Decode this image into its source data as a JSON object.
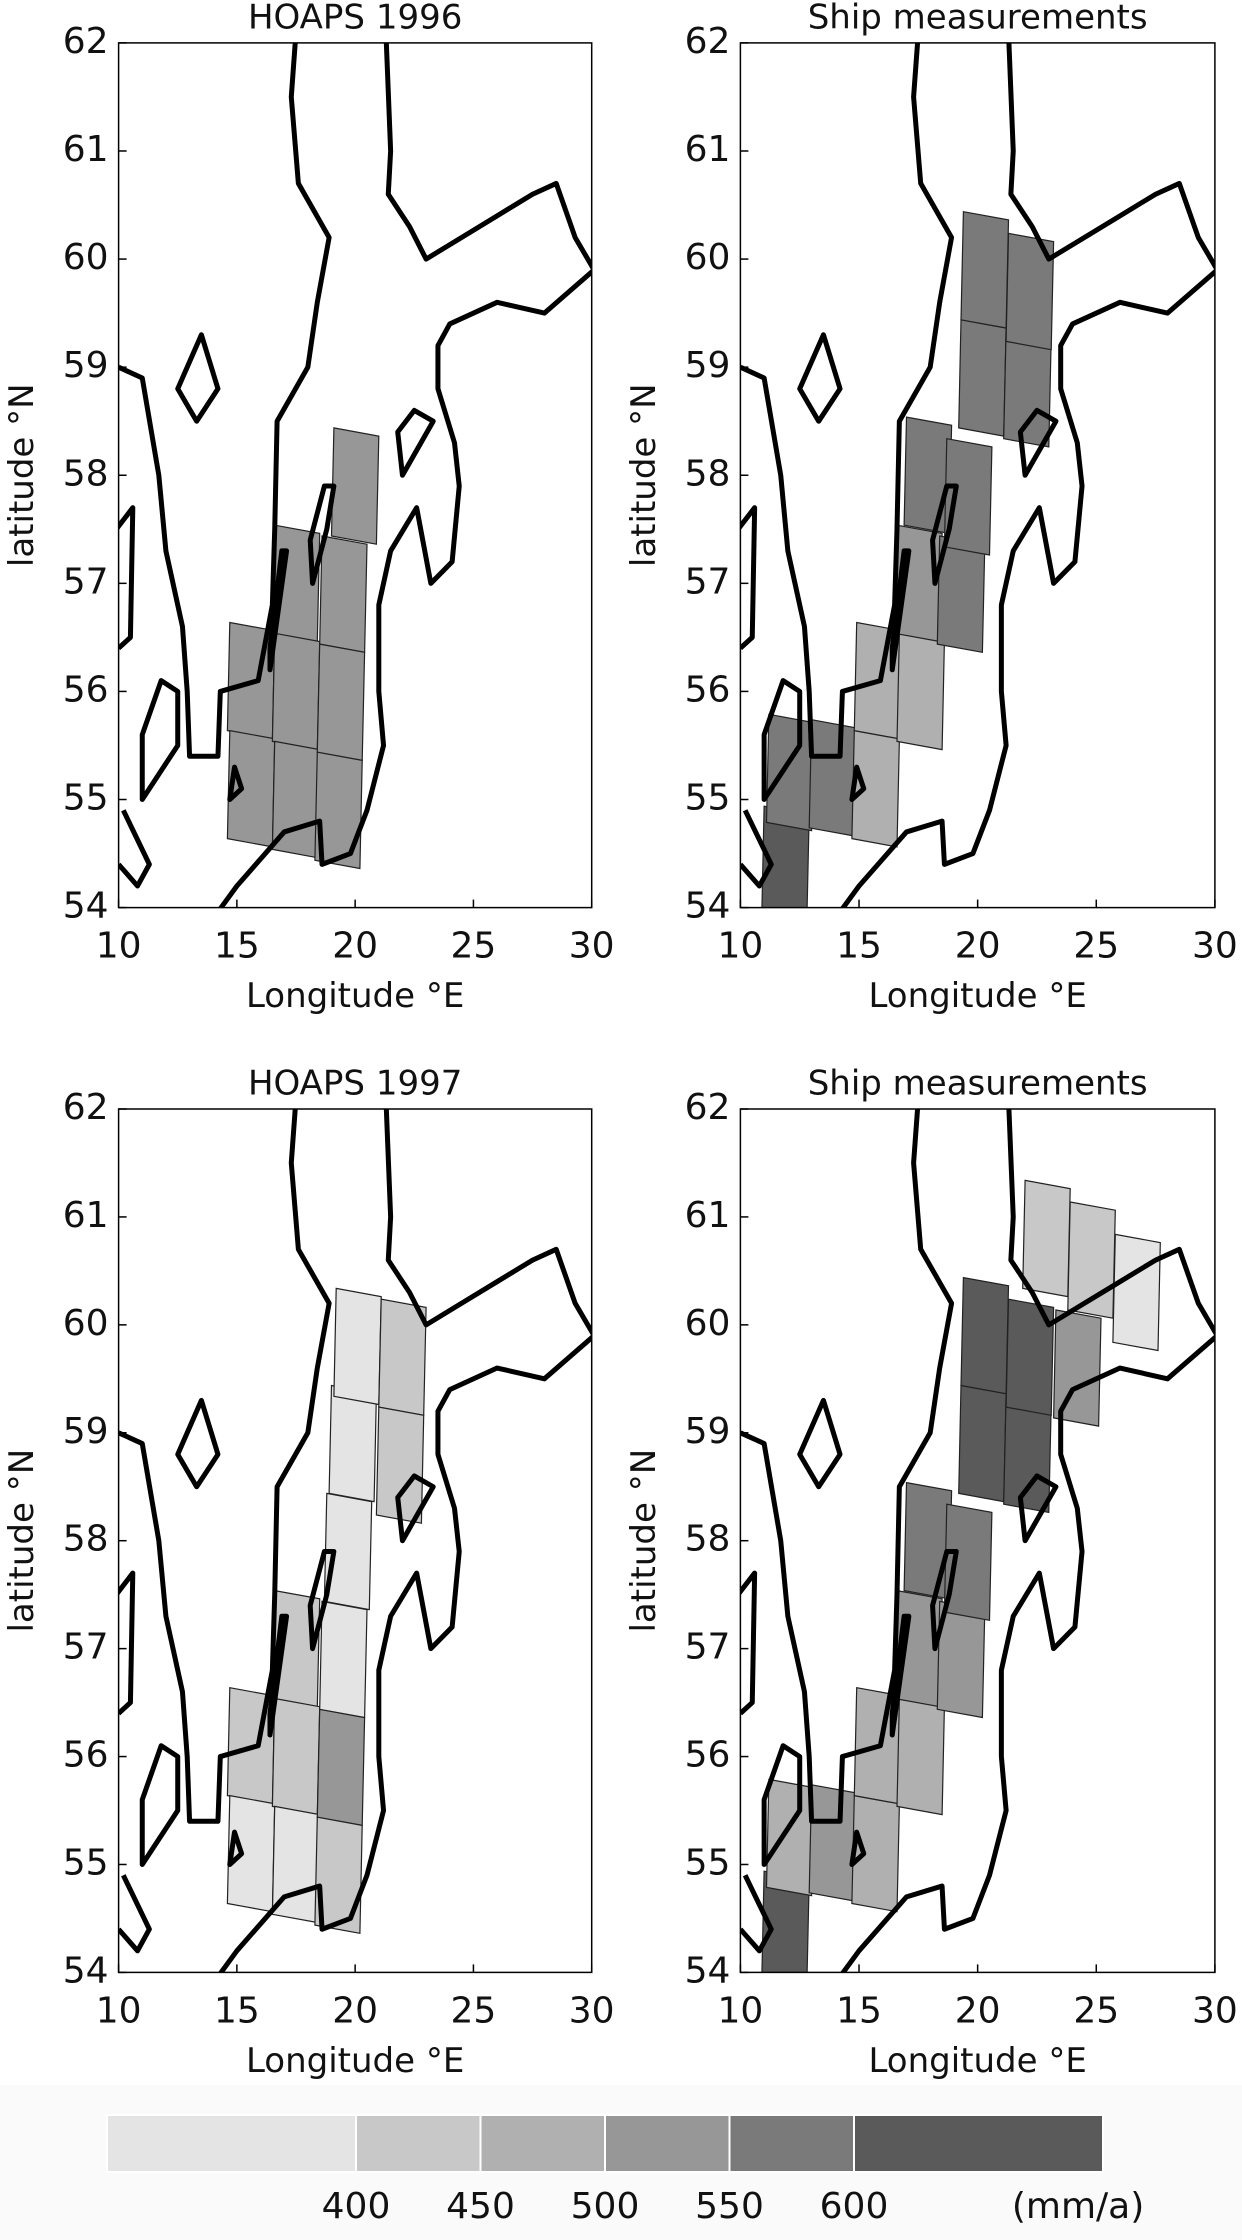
{
  "chart_data": [
    {
      "type": "map",
      "title": "HOAPS 1996",
      "xlabel": "Longitude °E",
      "ylabel": "latitude °N",
      "xlim": [
        10,
        30
      ],
      "ylim": [
        54,
        62
      ],
      "xticks": [
        10,
        15,
        20,
        25,
        30
      ],
      "yticks": [
        54,
        55,
        56,
        57,
        58,
        59,
        60,
        61,
        62
      ],
      "cells": [
        {
          "lon": 15.6,
          "lat": 56.1,
          "value": 525
        },
        {
          "lon": 15.6,
          "lat": 55.1,
          "value": 525
        },
        {
          "lon": 17.5,
          "lat": 57.0,
          "value": 525
        },
        {
          "lon": 17.5,
          "lat": 56.0,
          "value": 525
        },
        {
          "lon": 17.5,
          "lat": 55.0,
          "value": 525
        },
        {
          "lon": 20.0,
          "lat": 57.9,
          "value": 525
        },
        {
          "lon": 19.5,
          "lat": 56.9,
          "value": 525
        },
        {
          "lon": 19.4,
          "lat": 55.9,
          "value": 525
        },
        {
          "lon": 19.3,
          "lat": 54.9,
          "value": 525
        }
      ]
    },
    {
      "type": "map",
      "title": "Ship measurements",
      "xlabel": "Longitude °E",
      "ylabel": "latitude °N",
      "xlim": [
        10,
        30
      ],
      "ylim": [
        54,
        62
      ],
      "xticks": [
        10,
        15,
        20,
        25,
        30
      ],
      "yticks": [
        54,
        55,
        56,
        57,
        58,
        59,
        60,
        61,
        62
      ],
      "cells": [
        {
          "lon": 11.9,
          "lat": 54.4,
          "value": 625
        },
        {
          "lon": 12.1,
          "lat": 55.25,
          "value": 575
        },
        {
          "lon": 13.9,
          "lat": 55.2,
          "value": 575
        },
        {
          "lon": 15.7,
          "lat": 55.1,
          "value": 475
        },
        {
          "lon": 15.8,
          "lat": 56.1,
          "value": 475
        },
        {
          "lon": 17.6,
          "lat": 56.0,
          "value": 475
        },
        {
          "lon": 17.5,
          "lat": 57.0,
          "value": 525
        },
        {
          "lon": 17.9,
          "lat": 58.0,
          "value": 575
        },
        {
          "lon": 19.3,
          "lat": 56.9,
          "value": 575
        },
        {
          "lon": 19.6,
          "lat": 57.8,
          "value": 575
        },
        {
          "lon": 20.2,
          "lat": 58.9,
          "value": 575
        },
        {
          "lon": 20.3,
          "lat": 59.9,
          "value": 575
        },
        {
          "lon": 22.1,
          "lat": 58.8,
          "value": 575
        },
        {
          "lon": 22.2,
          "lat": 59.7,
          "value": 575
        }
      ]
    },
    {
      "type": "map",
      "title": "HOAPS 1997",
      "xlabel": "Longitude °E",
      "ylabel": "latitude °N",
      "xlim": [
        10,
        30
      ],
      "ylim": [
        54,
        62
      ],
      "xticks": [
        10,
        15,
        20,
        25,
        30
      ],
      "yticks": [
        54,
        55,
        56,
        57,
        58,
        59,
        60,
        61,
        62
      ],
      "cells": [
        {
          "lon": 15.6,
          "lat": 56.1,
          "value": 425
        },
        {
          "lon": 15.6,
          "lat": 55.1,
          "value": 375
        },
        {
          "lon": 17.5,
          "lat": 57.0,
          "value": 425
        },
        {
          "lon": 17.5,
          "lat": 56.0,
          "value": 425
        },
        {
          "lon": 17.5,
          "lat": 55.0,
          "value": 375
        },
        {
          "lon": 19.4,
          "lat": 55.9,
          "value": 525
        },
        {
          "lon": 19.3,
          "lat": 54.9,
          "value": 425
        },
        {
          "lon": 19.5,
          "lat": 56.9,
          "value": 375
        },
        {
          "lon": 19.7,
          "lat": 57.9,
          "value": 375
        },
        {
          "lon": 19.9,
          "lat": 58.9,
          "value": 375
        },
        {
          "lon": 20.1,
          "lat": 59.8,
          "value": 375
        },
        {
          "lon": 22.0,
          "lat": 59.7,
          "value": 425
        },
        {
          "lon": 21.9,
          "lat": 58.7,
          "value": 425
        }
      ]
    },
    {
      "type": "map",
      "title": "Ship measurements",
      "xlabel": "Longitude °E",
      "ylabel": "latitude °N",
      "xlim": [
        10,
        30
      ],
      "ylim": [
        54,
        62
      ],
      "xticks": [
        10,
        15,
        20,
        25,
        30
      ],
      "yticks": [
        54,
        55,
        56,
        57,
        58,
        59,
        60,
        61,
        62
      ],
      "cells": [
        {
          "lon": 11.9,
          "lat": 54.4,
          "value": 625
        },
        {
          "lon": 12.1,
          "lat": 55.25,
          "value": 475
        },
        {
          "lon": 13.9,
          "lat": 55.2,
          "value": 525
        },
        {
          "lon": 15.7,
          "lat": 55.1,
          "value": 475
        },
        {
          "lon": 15.8,
          "lat": 56.1,
          "value": 475
        },
        {
          "lon": 17.6,
          "lat": 56.0,
          "value": 475
        },
        {
          "lon": 17.5,
          "lat": 57.0,
          "value": 525
        },
        {
          "lon": 19.3,
          "lat": 56.9,
          "value": 525
        },
        {
          "lon": 17.9,
          "lat": 58.0,
          "value": 575
        },
        {
          "lon": 19.6,
          "lat": 57.8,
          "value": 575
        },
        {
          "lon": 20.2,
          "lat": 58.9,
          "value": 625
        },
        {
          "lon": 20.3,
          "lat": 59.9,
          "value": 625
        },
        {
          "lon": 22.1,
          "lat": 58.8,
          "value": 625
        },
        {
          "lon": 22.2,
          "lat": 59.7,
          "value": 625
        },
        {
          "lon": 24.2,
          "lat": 59.6,
          "value": 525
        },
        {
          "lon": 22.9,
          "lat": 60.8,
          "value": 425
        },
        {
          "lon": 24.8,
          "lat": 60.6,
          "value": 425
        },
        {
          "lon": 26.7,
          "lat": 60.3,
          "value": 375
        }
      ]
    }
  ],
  "colorbar": {
    "ticks": [
      400,
      450,
      500,
      550,
      600
    ],
    "unit": "(mm/a)",
    "colors": [
      "#e4e4e4",
      "#c8c8c8",
      "#b0b0b0",
      "#979797",
      "#7a7a7a",
      "#5a5a5a"
    ]
  }
}
